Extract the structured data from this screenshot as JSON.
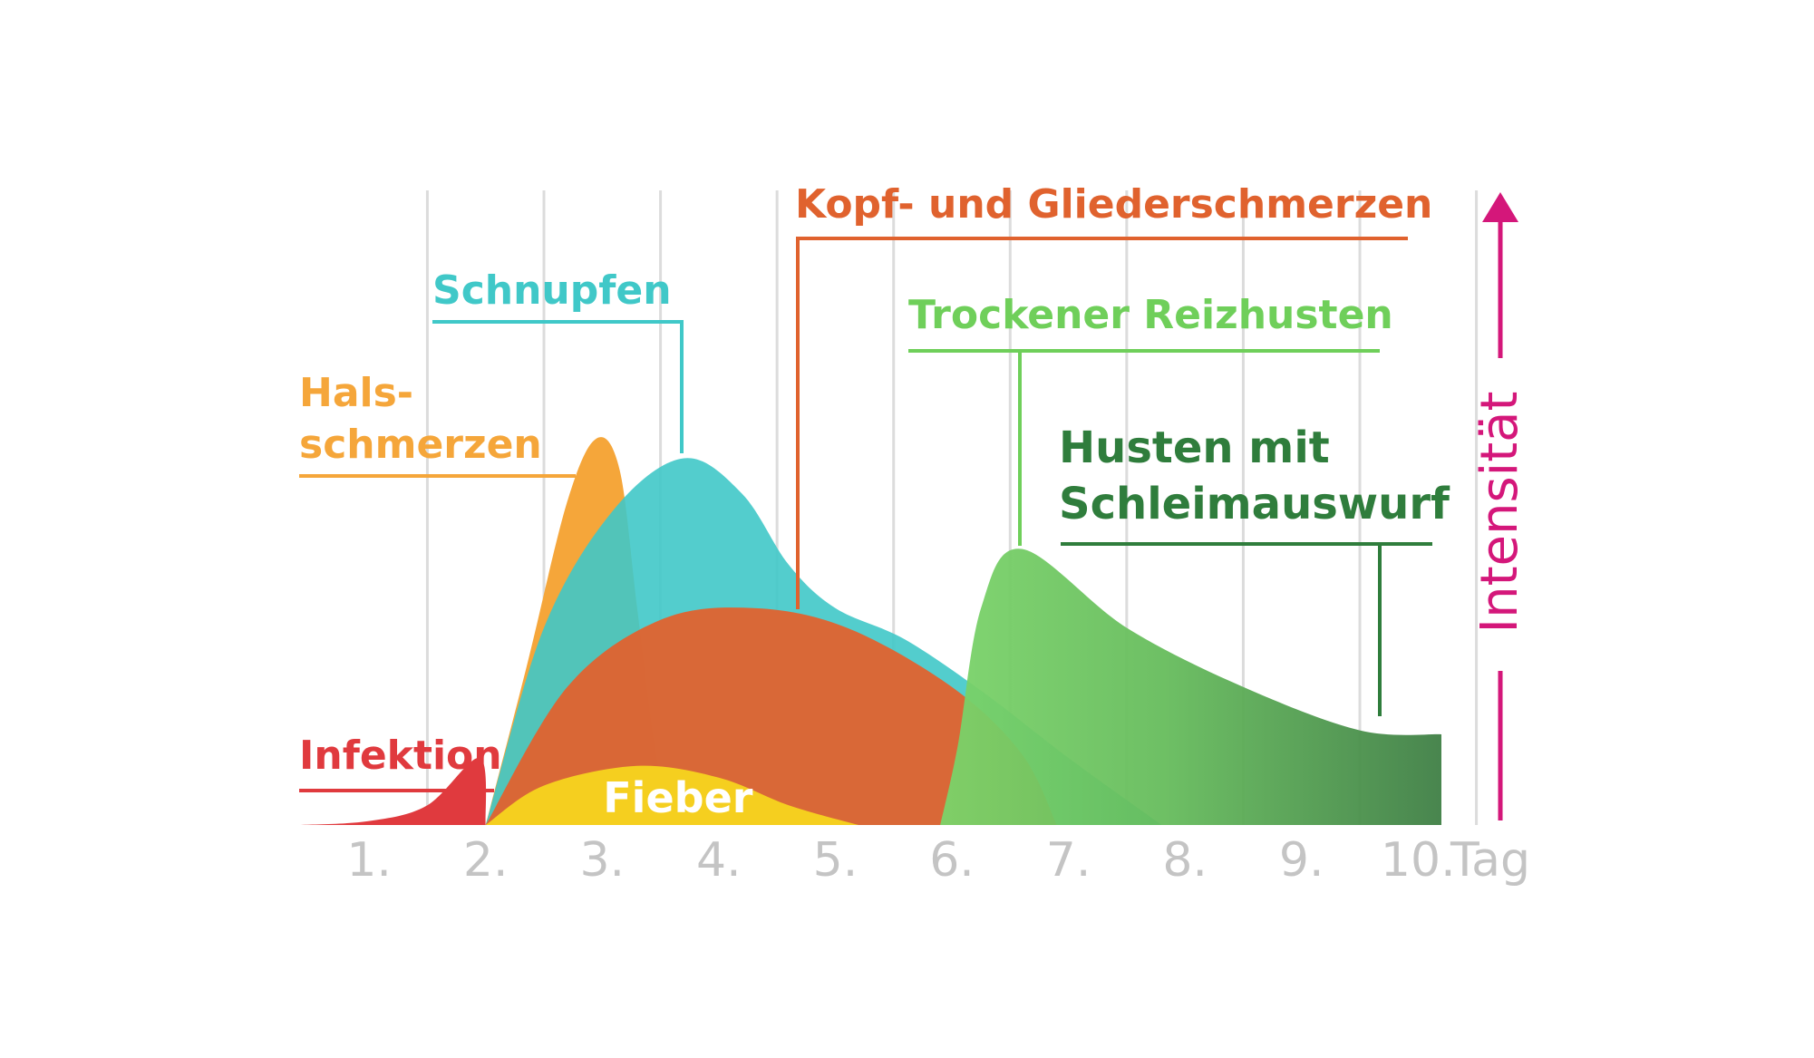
{
  "chart_data": {
    "type": "area",
    "x_unit_label": "Tag",
    "y_axis_label": "Intensität",
    "x_ticks": [
      "1.",
      "2.",
      "3.",
      "4.",
      "5.",
      "6.",
      "7.",
      "8.",
      "9.",
      "10."
    ],
    "x_range": [
      0.4,
      10.2
    ],
    "y_range": [
      0,
      1
    ],
    "grid": "vertical",
    "series": [
      {
        "key": "infektion",
        "name": "Infektion",
        "color": "#e03a3e",
        "points": [
          [
            0.4,
            0.0
          ],
          [
            1.0,
            0.01
          ],
          [
            1.5,
            0.05
          ],
          [
            1.95,
            0.17
          ],
          [
            2.0,
            0.0
          ]
        ]
      },
      {
        "key": "hals",
        "name": "Hals-\nschmerzen",
        "color": "#f5a63a",
        "points": [
          [
            2.0,
            0.0
          ],
          [
            2.35,
            0.4
          ],
          [
            2.7,
            0.82
          ],
          [
            2.95,
            0.98
          ],
          [
            3.15,
            0.9
          ],
          [
            3.3,
            0.55
          ],
          [
            3.45,
            0.2
          ],
          [
            3.6,
            0.0
          ]
        ]
      },
      {
        "key": "schnupfen",
        "name": "Schnupfen",
        "color": "#40c8c8",
        "points": [
          [
            2.0,
            0.0
          ],
          [
            2.5,
            0.5
          ],
          [
            3.1,
            0.8
          ],
          [
            3.7,
            0.93
          ],
          [
            4.2,
            0.84
          ],
          [
            4.6,
            0.66
          ],
          [
            5.0,
            0.55
          ],
          [
            5.6,
            0.47
          ],
          [
            6.3,
            0.33
          ],
          [
            7.0,
            0.17
          ],
          [
            7.8,
            0.0
          ]
        ]
      },
      {
        "key": "kopf",
        "name": "Kopf- und Gliederschmerzen",
        "color": "#e0622e",
        "points": [
          [
            2.0,
            0.0
          ],
          [
            2.7,
            0.35
          ],
          [
            3.5,
            0.52
          ],
          [
            4.3,
            0.55
          ],
          [
            5.1,
            0.5
          ],
          [
            6.0,
            0.35
          ],
          [
            6.6,
            0.18
          ],
          [
            6.9,
            0.0
          ]
        ]
      },
      {
        "key": "fieber",
        "name": "Fieber",
        "color": "#f5cf1f",
        "points": [
          [
            2.0,
            0.0
          ],
          [
            2.5,
            0.1
          ],
          [
            3.3,
            0.15
          ],
          [
            4.0,
            0.12
          ],
          [
            4.6,
            0.05
          ],
          [
            5.2,
            0.0
          ]
        ]
      },
      {
        "key": "trocken",
        "name": "Trockener Reizhusten",
        "color": "#6fcf5a",
        "points": [
          [
            5.9,
            0.0
          ],
          [
            6.05,
            0.2
          ],
          [
            6.25,
            0.55
          ],
          [
            6.6,
            0.7
          ]
        ],
        "label_x": 6.55
      },
      {
        "key": "schleim",
        "name": "Husten mit\nSchleimauswurf",
        "color": "#2f7d3c",
        "points": [
          [
            6.6,
            0.7
          ],
          [
            7.5,
            0.5
          ],
          [
            8.5,
            0.35
          ],
          [
            9.5,
            0.24
          ],
          [
            10.2,
            0.23
          ],
          [
            10.2,
            0.0
          ],
          [
            5.9,
            0.0
          ]
        ],
        "label_x": 9.75
      }
    ]
  }
}
